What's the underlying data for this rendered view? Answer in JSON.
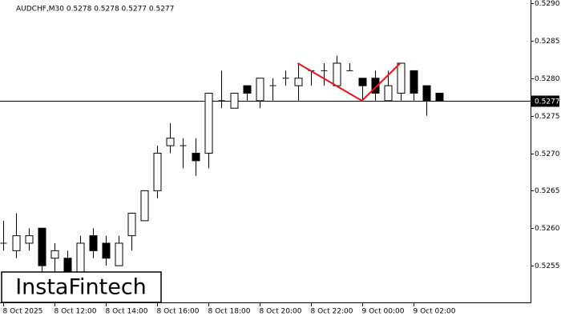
{
  "chart_data": {
    "type": "candlestick",
    "title": "AUDCHF,M30  0.5278 0.5278 0.5277 0.5277",
    "categories": [
      "8 Oct 2025",
      null,
      null,
      null,
      "8 Oct 12:00",
      null,
      null,
      null,
      "8 Oct 14:00",
      null,
      null,
      null,
      "8 Oct 16:00",
      null,
      null,
      null,
      "8 Oct 18:00",
      null,
      null,
      null,
      "8 Oct 20:00",
      null,
      null,
      null,
      "8 Oct 22:00",
      null,
      null,
      null,
      "9 Oct 00:00",
      null,
      null,
      null,
      "9 Oct 02:00",
      null,
      null
    ],
    "open": [
      0.5258,
      0.5257,
      0.5258,
      0.526,
      0.5256,
      0.5256,
      0.5254,
      0.5259,
      0.5258,
      0.5255,
      0.5259,
      0.5261,
      0.5265,
      0.5271,
      0.5271,
      0.527,
      0.527,
      0.5277,
      0.5276,
      0.5279,
      0.5277,
      0.5279,
      0.528,
      0.5279,
      0.5281,
      0.5281,
      0.5279,
      0.5281,
      0.528,
      0.528,
      0.5277,
      0.5278,
      0.5281,
      0.5279,
      0.5278
    ],
    "high": [
      0.5261,
      0.5262,
      0.526,
      0.526,
      0.5258,
      0.5257,
      0.5259,
      0.526,
      0.5259,
      0.5259,
      0.5262,
      0.5265,
      0.5271,
      0.5274,
      0.5272,
      0.5272,
      0.5278,
      0.5281,
      0.5278,
      0.5279,
      0.528,
      0.528,
      0.5281,
      0.5282,
      0.5281,
      0.5282,
      0.5283,
      0.5282,
      0.528,
      0.5281,
      0.5281,
      0.5282,
      0.5281,
      0.5279,
      0.5278
    ],
    "low": [
      0.5257,
      0.5256,
      0.5257,
      0.5254,
      0.5253,
      0.5253,
      0.5253,
      0.5256,
      0.5255,
      0.5255,
      0.5257,
      0.5261,
      0.5264,
      0.527,
      0.5268,
      0.5267,
      0.5268,
      0.5276,
      0.5276,
      0.5277,
      0.5276,
      0.5277,
      0.5279,
      0.5277,
      0.5279,
      0.5279,
      0.5279,
      0.5281,
      0.5277,
      0.5277,
      0.5277,
      0.5277,
      0.5277,
      0.5275,
      0.5277
    ],
    "close": [
      0.5258,
      0.5259,
      0.5259,
      0.5255,
      0.5257,
      0.5254,
      0.5258,
      0.5257,
      0.5256,
      0.5258,
      0.5262,
      0.5265,
      0.527,
      0.5272,
      0.5271,
      0.5269,
      0.5278,
      0.5277,
      0.5278,
      0.5278,
      0.528,
      0.5279,
      0.528,
      0.528,
      0.5281,
      0.5281,
      0.5282,
      0.5281,
      0.5279,
      0.5278,
      0.5279,
      0.5282,
      0.5278,
      0.5277,
      0.5277
    ],
    "up_color": "#ffffff",
    "down_color": "#000000",
    "outline_color": "#000000",
    "ylim": [
      0.525,
      0.529
    ],
    "yticks": [
      {
        "value": 0.529,
        "label": "0.5290"
      },
      0.5285,
      {
        "value": 0.528,
        "label": "0.5280"
      },
      0.5275,
      {
        "value": 0.527,
        "label": "0.5270"
      },
      0.5265,
      {
        "value": 0.526,
        "label": "0.5260"
      },
      0.5255
    ],
    "current_price": 0.5277,
    "pattern": {
      "color": "#e8141a",
      "points": [
        {
          "index": 23,
          "value": 0.5282
        },
        {
          "index": 28,
          "value": 0.5277
        },
        {
          "index": 31,
          "value": 0.5282
        }
      ]
    },
    "logo": "InstaFintech"
  }
}
